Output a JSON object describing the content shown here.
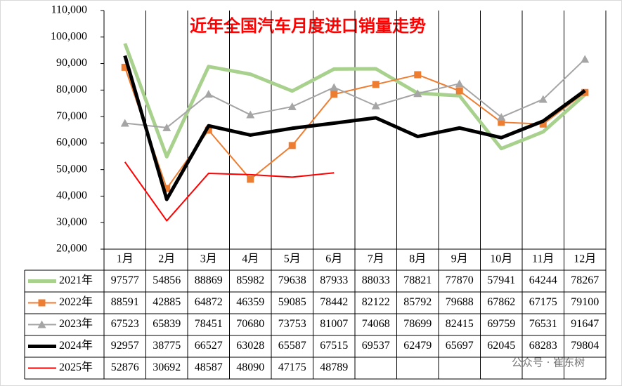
{
  "chart_data": {
    "type": "line",
    "title": "近年全国汽车月度进口销量走势",
    "watermark": "公众号 · 崔东树",
    "categories": [
      "1月",
      "2月",
      "3月",
      "4月",
      "5月",
      "6月",
      "7月",
      "8月",
      "9月",
      "10月",
      "11月",
      "12月"
    ],
    "ylim": [
      20000,
      110000
    ],
    "yticks": [
      {
        "value": 20000,
        "label": "20,000"
      },
      {
        "value": 30000,
        "label": "30,000"
      },
      {
        "value": 40000,
        "label": "40,000"
      },
      {
        "value": 50000,
        "label": "50,000"
      },
      {
        "value": 60000,
        "label": "60,000"
      },
      {
        "value": 70000,
        "label": "70,000"
      },
      {
        "value": 80000,
        "label": "80,000"
      },
      {
        "value": 90000,
        "label": "90,000"
      },
      {
        "value": 100000,
        "label": "100,000"
      },
      {
        "value": 110000,
        "label": "110,000"
      }
    ],
    "grid": false,
    "series": [
      {
        "name": "2021年",
        "color": "#a9d18e",
        "width": 5,
        "marker": "none",
        "values": [
          97577,
          54856,
          88869,
          85982,
          79638,
          87933,
          88033,
          78821,
          77870,
          57941,
          64244,
          78267
        ]
      },
      {
        "name": "2022年",
        "color": "#ed7d31",
        "width": 2,
        "marker": "square",
        "values": [
          88591,
          42885,
          64872,
          46359,
          59085,
          78442,
          82122,
          85792,
          79688,
          67862,
          67175,
          79100
        ]
      },
      {
        "name": "2023年",
        "color": "#a5a5a5",
        "width": 2,
        "marker": "triangle",
        "values": [
          67523,
          65839,
          78451,
          70680,
          73753,
          81007,
          74068,
          78699,
          82415,
          69759,
          76531,
          91647
        ]
      },
      {
        "name": "2024年",
        "color": "#000000",
        "width": 5,
        "marker": "none",
        "values": [
          92957,
          38775,
          66527,
          63028,
          65587,
          67515,
          69537,
          62479,
          65697,
          62045,
          68283,
          79804
        ]
      },
      {
        "name": "2025年",
        "color": "#ff0000",
        "width": 2,
        "marker": "none",
        "values": [
          52876,
          30692,
          48587,
          48090,
          47175,
          48789,
          null,
          null,
          null,
          null,
          null,
          null
        ]
      }
    ]
  }
}
